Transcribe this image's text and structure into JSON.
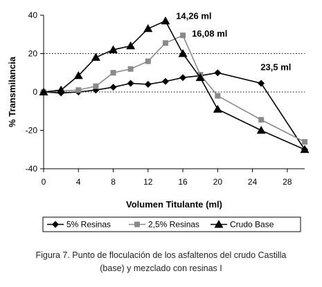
{
  "chart_data": {
    "type": "line",
    "xlabel": "Volumen Titulante (ml)",
    "ylabel": "% Transmilancia",
    "xlim": [
      0,
      30
    ],
    "ylim": [
      -40,
      40
    ],
    "xticks": [
      0,
      4,
      8,
      12,
      16,
      20,
      24,
      28
    ],
    "yticks": [
      -40,
      -20,
      0,
      20,
      40
    ],
    "reference_lines_y": [
      0,
      20
    ],
    "legend_position": "bottom",
    "series": [
      {
        "name": "5% Resinas",
        "color": "#000000",
        "marker": "diamond",
        "x": [
          0,
          2,
          4,
          6,
          8,
          10,
          12,
          14,
          16,
          18,
          20,
          25,
          30
        ],
        "y": [
          0,
          -0.5,
          0,
          1,
          2.5,
          4.5,
          4,
          5.5,
          7.5,
          8.5,
          10,
          4.5,
          -30
        ]
      },
      {
        "name": "2,5% Resinas",
        "color": "#8a8a8a",
        "marker": "square",
        "x": [
          0,
          4,
          6,
          8,
          10,
          12,
          14,
          16,
          18,
          20,
          25,
          30
        ],
        "y": [
          0,
          1,
          3,
          10,
          12,
          16,
          25.5,
          29.5,
          9,
          -2,
          -14.5,
          -26
        ]
      },
      {
        "name": "Crudo Base",
        "color": "#000000",
        "marker": "triangle",
        "x": [
          0,
          2,
          4,
          6,
          8,
          10,
          12,
          14,
          16,
          18,
          20,
          25,
          30
        ],
        "y": [
          0,
          1,
          8.5,
          18,
          22,
          24,
          33,
          37,
          20,
          7.5,
          -9,
          -20,
          -30
        ]
      }
    ],
    "annotations": [
      {
        "text": "14,26 ml",
        "x": 14.26,
        "y": 37
      },
      {
        "text": "16,08 ml",
        "x": 16.08,
        "y": 29.5
      },
      {
        "text": "23,5 ml",
        "x": 23.5,
        "y": 10
      }
    ]
  },
  "caption": {
    "line1": "Figura 7. Punto de floculación de los asfaltenos del crudo Castilla",
    "line2": "(base) y mezclado con resinas I"
  }
}
